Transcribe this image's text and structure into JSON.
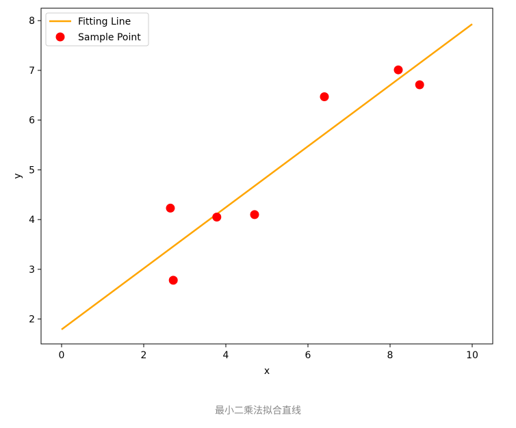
{
  "caption": "最小二乘法拟合直线",
  "chart_data": {
    "type": "scatter",
    "xlabel": "x",
    "ylabel": "y",
    "xlim": [
      -0.5,
      10.5
    ],
    "ylim": [
      1.5,
      8.25
    ],
    "xticks": [
      0,
      2,
      4,
      6,
      8,
      10
    ],
    "yticks": [
      2,
      3,
      4,
      5,
      6,
      7,
      8
    ],
    "grid": false,
    "legend_position": "top-left",
    "series": [
      {
        "name": "Fitting Line",
        "type": "line",
        "color": "#ffa500",
        "x": [
          0,
          10
        ],
        "y": [
          1.79,
          7.93
        ]
      },
      {
        "name": "Sample Point",
        "type": "scatter",
        "color": "#ff0000",
        "x": [
          2.65,
          2.72,
          3.78,
          4.7,
          6.4,
          8.2,
          8.72
        ],
        "y": [
          4.23,
          2.78,
          4.05,
          4.1,
          6.47,
          7.01,
          6.71
        ]
      }
    ]
  }
}
